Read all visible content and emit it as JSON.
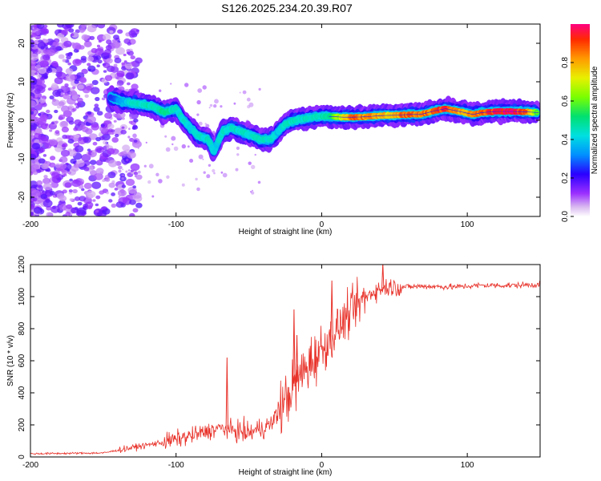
{
  "title": "S126.2025.234.20.39.R07",
  "chart_data": [
    {
      "type": "heatmap",
      "xlabel": "Height of straight line (km)",
      "ylabel": "Frequency (Hz)",
      "xlim": [
        -200,
        150
      ],
      "ylim": [
        -25,
        25
      ],
      "xticks": [
        -200,
        -100,
        0,
        100
      ],
      "yticks": [
        -20,
        -10,
        0,
        10,
        20
      ],
      "colorbar": {
        "label": "Normalized spectral amplitude",
        "range": [
          0,
          1
        ],
        "ticks": [
          0.0,
          0.2,
          0.4,
          0.6,
          0.8
        ]
      },
      "ridge": [
        {
          "x": -145,
          "y": 6,
          "a": 0.25
        },
        {
          "x": -138,
          "y": 5,
          "a": 0.35
        },
        {
          "x": -130,
          "y": 4.5,
          "a": 0.45
        },
        {
          "x": -122,
          "y": 4,
          "a": 0.45
        },
        {
          "x": -115,
          "y": 3.5,
          "a": 0.45
        },
        {
          "x": -108,
          "y": 2,
          "a": 0.5
        },
        {
          "x": -100,
          "y": 3,
          "a": 0.45
        },
        {
          "x": -95,
          "y": 0,
          "a": 0.45
        },
        {
          "x": -90,
          "y": -2,
          "a": 0.4
        },
        {
          "x": -85,
          "y": -4,
          "a": 0.45
        },
        {
          "x": -78,
          "y": -5,
          "a": 0.45
        },
        {
          "x": -74,
          "y": -8,
          "a": 0.4
        },
        {
          "x": -68,
          "y": -3,
          "a": 0.45
        },
        {
          "x": -62,
          "y": -2,
          "a": 0.45
        },
        {
          "x": -55,
          "y": -3,
          "a": 0.45
        },
        {
          "x": -48,
          "y": -4,
          "a": 0.45
        },
        {
          "x": -42,
          "y": -5,
          "a": 0.45
        },
        {
          "x": -35,
          "y": -5,
          "a": 0.45
        },
        {
          "x": -30,
          "y": -3,
          "a": 0.4
        },
        {
          "x": -25,
          "y": -1,
          "a": 0.45
        },
        {
          "x": -18,
          "y": 0,
          "a": 0.45
        },
        {
          "x": -10,
          "y": 0.5,
          "a": 0.45
        },
        {
          "x": -3,
          "y": 1,
          "a": 0.45
        },
        {
          "x": 5,
          "y": 1,
          "a": 0.5
        },
        {
          "x": 15,
          "y": 0.8,
          "a": 0.75
        },
        {
          "x": 22,
          "y": 0.8,
          "a": 0.9
        },
        {
          "x": 30,
          "y": 0.9,
          "a": 0.85
        },
        {
          "x": 40,
          "y": 1.2,
          "a": 0.8
        },
        {
          "x": 50,
          "y": 1.3,
          "a": 0.8
        },
        {
          "x": 60,
          "y": 1.5,
          "a": 0.9
        },
        {
          "x": 68,
          "y": 1.5,
          "a": 0.85
        },
        {
          "x": 78,
          "y": 2.5,
          "a": 0.9
        },
        {
          "x": 85,
          "y": 3,
          "a": 0.95
        },
        {
          "x": 92,
          "y": 2.5,
          "a": 0.85
        },
        {
          "x": 98,
          "y": 2,
          "a": 0.8
        },
        {
          "x": 104,
          "y": 1.5,
          "a": 0.85
        },
        {
          "x": 110,
          "y": 2,
          "a": 0.9
        },
        {
          "x": 120,
          "y": 2.3,
          "a": 0.95
        },
        {
          "x": 130,
          "y": 2.3,
          "a": 1.0
        },
        {
          "x": 140,
          "y": 2.2,
          "a": 0.9
        },
        {
          "x": 148,
          "y": 2,
          "a": 0.6
        }
      ]
    },
    {
      "type": "line",
      "xlabel": "Height of straight line (km)",
      "ylabel": "SNR (10 * v/v)",
      "xlim": [
        -200,
        150
      ],
      "ylim": [
        0,
        1200
      ],
      "xticks": [
        -200,
        -100,
        0,
        100
      ],
      "yticks": [
        0,
        200,
        400,
        600,
        800,
        1000,
        1200
      ],
      "color": "#e8322a",
      "trend": [
        {
          "x": -200,
          "y": 20
        },
        {
          "x": -150,
          "y": 25
        },
        {
          "x": -135,
          "y": 50
        },
        {
          "x": -110,
          "y": 90
        },
        {
          "x": -90,
          "y": 130
        },
        {
          "x": -70,
          "y": 180
        },
        {
          "x": -50,
          "y": 150
        },
        {
          "x": -35,
          "y": 200
        },
        {
          "x": -25,
          "y": 350
        },
        {
          "x": -15,
          "y": 500
        },
        {
          "x": -5,
          "y": 620
        },
        {
          "x": 5,
          "y": 720
        },
        {
          "x": 15,
          "y": 850
        },
        {
          "x": 25,
          "y": 950
        },
        {
          "x": 35,
          "y": 1030
        },
        {
          "x": 45,
          "y": 1060
        },
        {
          "x": 55,
          "y": 1060
        },
        {
          "x": 70,
          "y": 1065
        },
        {
          "x": 90,
          "y": 1060
        },
        {
          "x": 110,
          "y": 1070
        },
        {
          "x": 130,
          "y": 1070
        },
        {
          "x": 150,
          "y": 1075
        }
      ],
      "spikes": [
        {
          "x": -65,
          "y": 620
        },
        {
          "x": -19,
          "y": 920
        },
        {
          "x": -17,
          "y": 760
        },
        {
          "x": 7,
          "y": 1100
        },
        {
          "x": 42,
          "y": 1210
        }
      ]
    }
  ]
}
